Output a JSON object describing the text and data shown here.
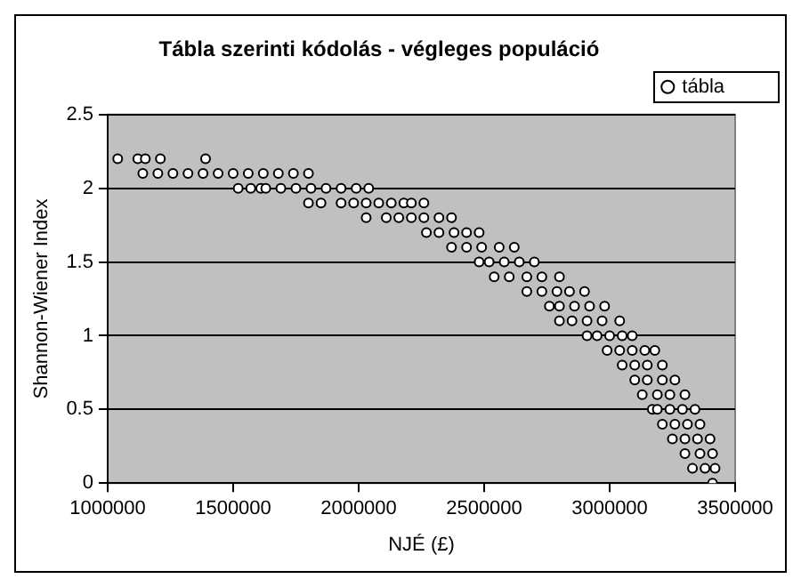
{
  "chart_data": {
    "type": "scatter",
    "title": "Tábla szerinti kódolás - végleges populáció",
    "xlabel": "NJÉ (£)",
    "ylabel": "Shannon-Wiener Index",
    "series": [
      {
        "name": "tábla",
        "color": "#000000",
        "x": [
          1040000,
          1120000,
          1150000,
          1210000,
          1390000,
          1140000,
          1200000,
          1260000,
          1320000,
          1380000,
          1440000,
          1500000,
          1560000,
          1620000,
          1680000,
          1740000,
          1800000,
          1520000,
          1570000,
          1610000,
          1630000,
          1690000,
          1750000,
          1810000,
          1870000,
          1930000,
          1990000,
          2040000,
          1800000,
          1850000,
          1930000,
          1980000,
          2030000,
          2080000,
          2130000,
          2180000,
          2210000,
          2260000,
          2030000,
          2110000,
          2160000,
          2210000,
          2260000,
          2320000,
          2370000,
          2270000,
          2320000,
          2380000,
          2430000,
          2480000,
          2370000,
          2430000,
          2490000,
          2560000,
          2620000,
          2480000,
          2520000,
          2580000,
          2640000,
          2700000,
          2540000,
          2600000,
          2670000,
          2730000,
          2800000,
          2670000,
          2730000,
          2790000,
          2840000,
          2900000,
          2760000,
          2800000,
          2860000,
          2920000,
          2980000,
          2800000,
          2850000,
          2910000,
          2970000,
          3040000,
          2910000,
          2950000,
          3000000,
          3050000,
          3090000,
          2990000,
          3040000,
          3090000,
          3140000,
          3180000,
          3050000,
          3100000,
          3150000,
          3210000,
          3100000,
          3150000,
          3210000,
          3260000,
          3130000,
          3190000,
          3240000,
          3300000,
          3170000,
          3190000,
          3240000,
          3290000,
          3340000,
          3210000,
          3260000,
          3310000,
          3360000,
          3250000,
          3300000,
          3350000,
          3400000,
          3300000,
          3360000,
          3410000,
          3330000,
          3380000,
          3420000,
          3410000
        ],
        "values": [
          2.2,
          2.2,
          2.2,
          2.2,
          2.2,
          2.1,
          2.1,
          2.1,
          2.1,
          2.1,
          2.1,
          2.1,
          2.1,
          2.1,
          2.1,
          2.1,
          2.1,
          2.0,
          2.0,
          2.0,
          2.0,
          2.0,
          2.0,
          2.0,
          2.0,
          2.0,
          2.0,
          2.0,
          1.9,
          1.9,
          1.9,
          1.9,
          1.9,
          1.9,
          1.9,
          1.9,
          1.9,
          1.9,
          1.8,
          1.8,
          1.8,
          1.8,
          1.8,
          1.8,
          1.8,
          1.7,
          1.7,
          1.7,
          1.7,
          1.7,
          1.6,
          1.6,
          1.6,
          1.6,
          1.6,
          1.5,
          1.5,
          1.5,
          1.5,
          1.5,
          1.4,
          1.4,
          1.4,
          1.4,
          1.4,
          1.3,
          1.3,
          1.3,
          1.3,
          1.3,
          1.2,
          1.2,
          1.2,
          1.2,
          1.2,
          1.1,
          1.1,
          1.1,
          1.1,
          1.1,
          1.0,
          1.0,
          1.0,
          1.0,
          1.0,
          0.9,
          0.9,
          0.9,
          0.9,
          0.9,
          0.8,
          0.8,
          0.8,
          0.8,
          0.7,
          0.7,
          0.7,
          0.7,
          0.6,
          0.6,
          0.6,
          0.6,
          0.5,
          0.5,
          0.5,
          0.5,
          0.5,
          0.4,
          0.4,
          0.4,
          0.4,
          0.3,
          0.3,
          0.3,
          0.3,
          0.2,
          0.2,
          0.2,
          0.1,
          0.1,
          0.1,
          0.0
        ]
      }
    ],
    "xlim": [
      1000000,
      3500000
    ],
    "xticks": [
      1000000,
      1500000,
      2000000,
      2500000,
      3000000,
      3500000
    ],
    "ylim": [
      0,
      2.5
    ],
    "yticks": [
      0,
      0.5,
      1,
      1.5,
      2,
      2.5
    ],
    "grid": "y",
    "legend": "top right",
    "marker": "circle"
  }
}
